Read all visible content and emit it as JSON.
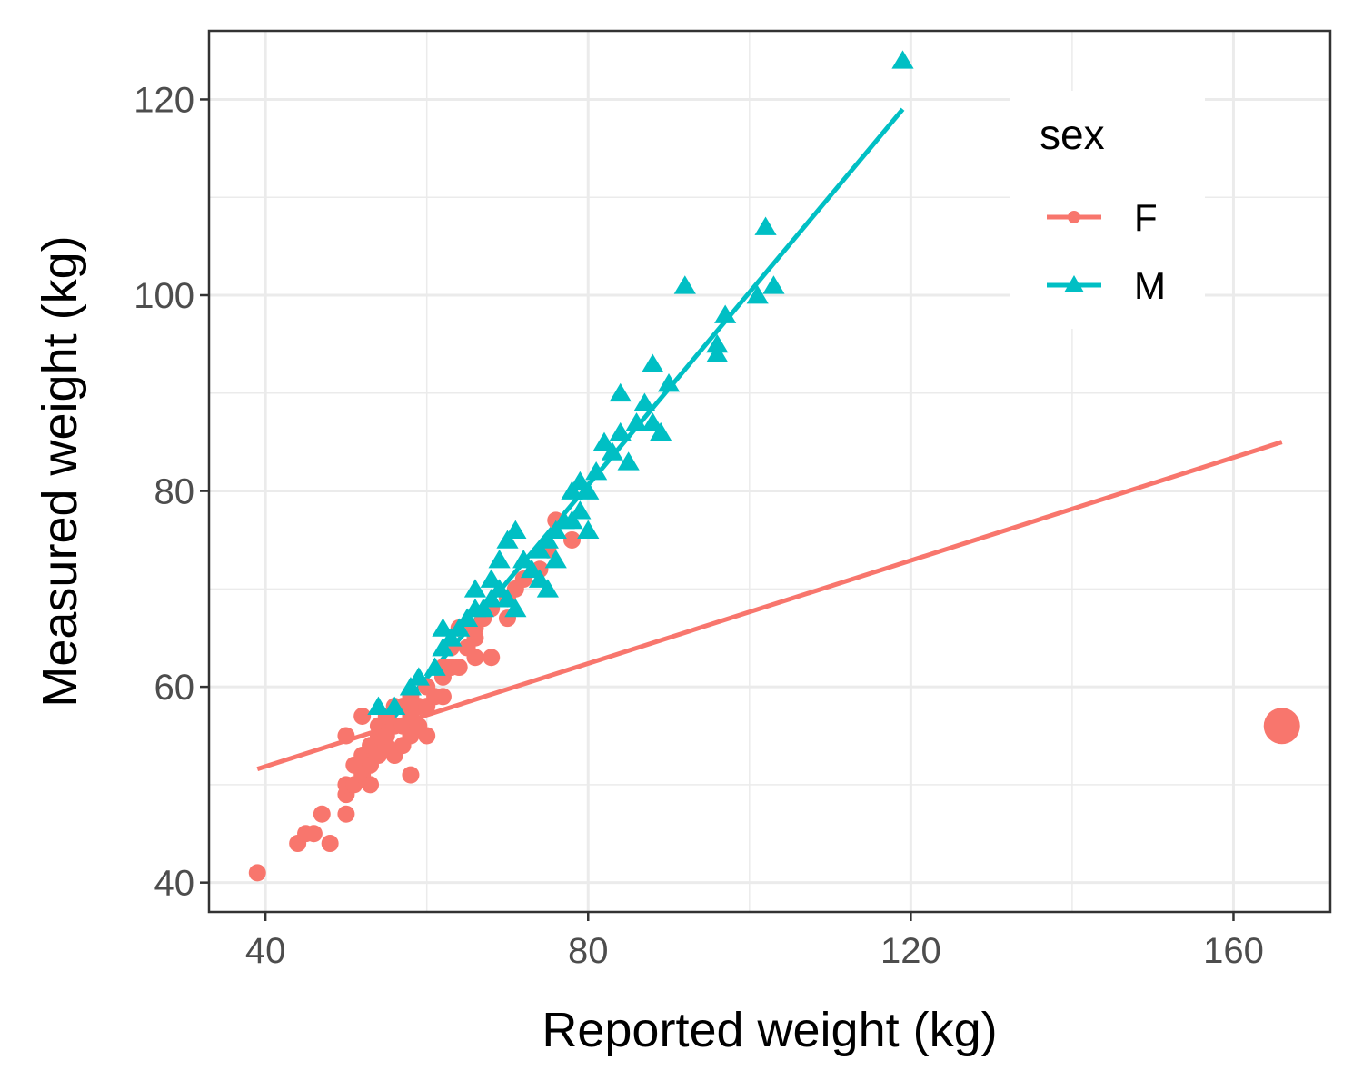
{
  "chart_data": {
    "type": "scatter",
    "title": "",
    "xlabel": "Reported weight (kg)",
    "ylabel": "Measured weight (kg)",
    "xlim": [
      33,
      172
    ],
    "ylim": [
      37,
      127
    ],
    "xticks": [
      40,
      80,
      120,
      160
    ],
    "yticks": [
      40,
      60,
      80,
      100,
      120
    ],
    "xtick_labels": [
      "40",
      "80",
      "120",
      "160"
    ],
    "ytick_labels": [
      "40",
      "60",
      "80",
      "100",
      "120"
    ],
    "grid": true,
    "legend": {
      "title": "sex",
      "placement": "top-right",
      "entries": [
        "F",
        "M"
      ]
    },
    "series": [
      {
        "name": "F",
        "color": "#F8766D",
        "marker": "circle",
        "points": [
          [
            39,
            41
          ],
          [
            44,
            44
          ],
          [
            45,
            45
          ],
          [
            46,
            45
          ],
          [
            47,
            47
          ],
          [
            48,
            44
          ],
          [
            50,
            47
          ],
          [
            50,
            49
          ],
          [
            50,
            50
          ],
          [
            50,
            55
          ],
          [
            51,
            50
          ],
          [
            51,
            52
          ],
          [
            52,
            51
          ],
          [
            52,
            53
          ],
          [
            52,
            57
          ],
          [
            53,
            50
          ],
          [
            53,
            52
          ],
          [
            53,
            54
          ],
          [
            54,
            53
          ],
          [
            54,
            55
          ],
          [
            54,
            56
          ],
          [
            55,
            54
          ],
          [
            55,
            55
          ],
          [
            55,
            57
          ],
          [
            56,
            53
          ],
          [
            56,
            56
          ],
          [
            56,
            58
          ],
          [
            57,
            54
          ],
          [
            57,
            56
          ],
          [
            57,
            58
          ],
          [
            58,
            51
          ],
          [
            58,
            55
          ],
          [
            58,
            57
          ],
          [
            58,
            59
          ],
          [
            59,
            56
          ],
          [
            59,
            58
          ],
          [
            60,
            55
          ],
          [
            60,
            58
          ],
          [
            60,
            60
          ],
          [
            61,
            59
          ],
          [
            62,
            59
          ],
          [
            62,
            61
          ],
          [
            62,
            62
          ],
          [
            63,
            62
          ],
          [
            63,
            64
          ],
          [
            64,
            62
          ],
          [
            64,
            66
          ],
          [
            65,
            64
          ],
          [
            66,
            63
          ],
          [
            66,
            65
          ],
          [
            66,
            66
          ],
          [
            67,
            67
          ],
          [
            68,
            63
          ],
          [
            68,
            68
          ],
          [
            70,
            67
          ],
          [
            70,
            69
          ],
          [
            71,
            70
          ],
          [
            72,
            71
          ],
          [
            74,
            72
          ],
          [
            75,
            74
          ],
          [
            76,
            77
          ],
          [
            78,
            75
          ],
          [
            166,
            56
          ]
        ],
        "fit_line": [
          [
            39,
            51.6
          ],
          [
            166,
            85
          ]
        ]
      },
      {
        "name": "M",
        "color": "#00BFC4",
        "marker": "triangle",
        "points": [
          [
            54,
            58
          ],
          [
            56,
            58
          ],
          [
            58,
            60
          ],
          [
            59,
            61
          ],
          [
            61,
            62
          ],
          [
            62,
            66
          ],
          [
            62,
            64
          ],
          [
            63,
            65
          ],
          [
            64,
            66
          ],
          [
            65,
            67
          ],
          [
            66,
            68
          ],
          [
            66,
            70
          ],
          [
            67,
            68
          ],
          [
            68,
            69
          ],
          [
            68,
            71
          ],
          [
            69,
            70
          ],
          [
            69,
            73
          ],
          [
            70,
            69
          ],
          [
            70,
            75
          ],
          [
            71,
            76
          ],
          [
            71,
            68
          ],
          [
            72,
            73
          ],
          [
            73,
            72
          ],
          [
            74,
            74
          ],
          [
            74,
            71
          ],
          [
            75,
            70
          ],
          [
            75,
            75
          ],
          [
            76,
            73
          ],
          [
            76,
            76
          ],
          [
            77,
            77
          ],
          [
            78,
            77
          ],
          [
            78,
            80
          ],
          [
            79,
            81
          ],
          [
            79,
            78
          ],
          [
            80,
            76
          ],
          [
            80,
            80
          ],
          [
            81,
            82
          ],
          [
            82,
            85
          ],
          [
            83,
            84
          ],
          [
            84,
            90
          ],
          [
            84,
            86
          ],
          [
            85,
            83
          ],
          [
            86,
            87
          ],
          [
            87,
            89
          ],
          [
            88,
            93
          ],
          [
            88,
            87
          ],
          [
            89,
            86
          ],
          [
            90,
            91
          ],
          [
            92,
            101
          ],
          [
            96,
            94
          ],
          [
            96,
            95
          ],
          [
            97,
            98
          ],
          [
            101,
            100
          ],
          [
            102,
            107
          ],
          [
            103,
            101
          ],
          [
            119,
            124
          ]
        ],
        "fit_line": [
          [
            54,
            55
          ],
          [
            119,
            119
          ]
        ]
      }
    ]
  }
}
